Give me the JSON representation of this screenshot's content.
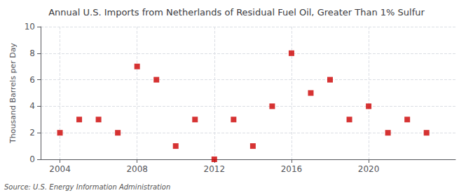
{
  "chart_data": {
    "type": "scatter",
    "title": "Annual U.S. Imports from Netherlands of Residual Fuel Oil, Greater Than 1% Sulfur",
    "ylabel": "Thousand Barrels per Day",
    "annotation": "Source: U.S. Energy Information Administration",
    "x": [
      2004,
      2005,
      2006,
      2007,
      2008,
      2009,
      2010,
      2011,
      2012,
      2013,
      2014,
      2015,
      2016,
      2017,
      2018,
      2019,
      2020,
      2021,
      2022,
      2023
    ],
    "values": [
      2,
      3,
      3,
      2,
      7,
      6,
      1,
      3,
      0,
      3,
      1,
      4,
      8,
      5,
      6,
      3,
      4,
      2,
      3,
      2
    ],
    "xlim": [
      2003.0,
      2024.5
    ],
    "ylim": [
      0,
      10
    ],
    "xticks": [
      2004,
      2008,
      2012,
      2016,
      2020
    ],
    "yticks": [
      0,
      2,
      4,
      6,
      8,
      10
    ],
    "color": "#cc0000",
    "marker": "square",
    "grid": true
  }
}
